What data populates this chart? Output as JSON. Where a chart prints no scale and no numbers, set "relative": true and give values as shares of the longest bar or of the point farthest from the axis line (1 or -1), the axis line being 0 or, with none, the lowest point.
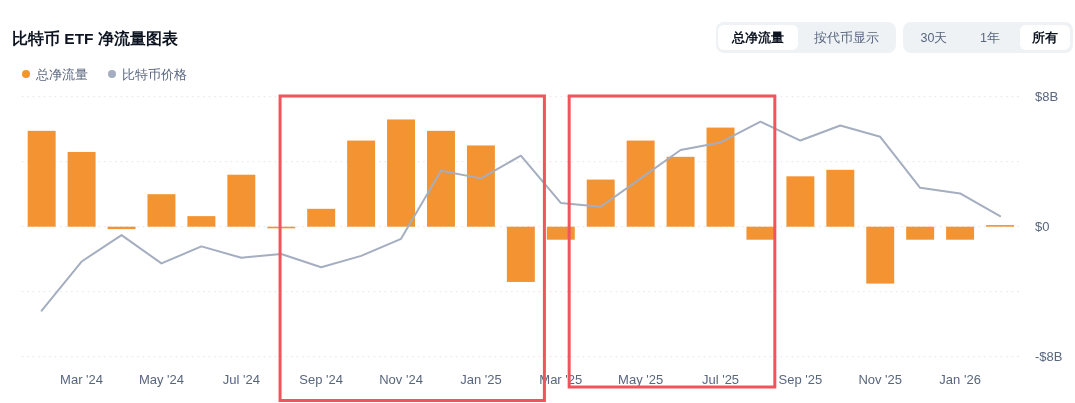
{
  "chart_data": [
    {
      "type": "bar",
      "title": "比特币 ETF 净流量图表",
      "categories": [
        null,
        "Mar '24",
        null,
        "May '24",
        null,
        "Jul '24",
        null,
        "Sep '24",
        null,
        "Nov '24",
        null,
        "Jan '25",
        null,
        "Mar '25",
        null,
        "May '25",
        null,
        "Jul '25",
        null,
        "Sep '25",
        null,
        "Nov '25",
        null,
        "Jan '26",
        null
      ],
      "series": [
        {
          "name": "总净流量",
          "color": "#f39331",
          "values": [
            5.9,
            4.6,
            -0.15,
            2.0,
            0.65,
            3.2,
            -0.1,
            1.1,
            5.3,
            6.6,
            5.9,
            5.0,
            -3.4,
            -0.8,
            2.9,
            5.3,
            4.3,
            6.1,
            -0.8,
            3.1,
            3.5,
            -3.5,
            -0.8,
            -0.8,
            0.1
          ]
        }
      ],
      "ylim": [
        -8,
        8
      ],
      "yticks": [
        {
          "value": 8,
          "label": "$8B"
        },
        {
          "value": 4,
          "label": null
        },
        {
          "value": 0,
          "label": "$0"
        },
        {
          "value": -4,
          "label": null
        },
        {
          "value": -8,
          "label": "-$8B"
        }
      ],
      "grid": "y",
      "legend": "top left",
      "annotations": [
        "总净流量",
        "按代币显示",
        "30天",
        "1年",
        "所有"
      ]
    },
    {
      "type": "line",
      "relative": true,
      "categories": [
        null,
        null,
        null,
        null,
        null,
        null,
        null,
        null,
        null,
        null,
        null,
        null,
        null,
        null,
        null,
        null,
        null,
        null,
        null,
        null,
        null,
        null,
        null,
        null,
        null
      ],
      "series": [
        {
          "name": "比特币价格",
          "color": "#a4aec0",
          "values": [
            0,
            0.26,
            0.4,
            0.25,
            0.34,
            0.28,
            0.3,
            0.23,
            0.29,
            0.38,
            0.74,
            0.7,
            0.82,
            0.57,
            0.55,
            0.7,
            0.85,
            0.89,
            1,
            0.9,
            0.98,
            0.92,
            0.65,
            0.62,
            0.5
          ]
        }
      ],
      "legend": "top left"
    }
  ]
}
